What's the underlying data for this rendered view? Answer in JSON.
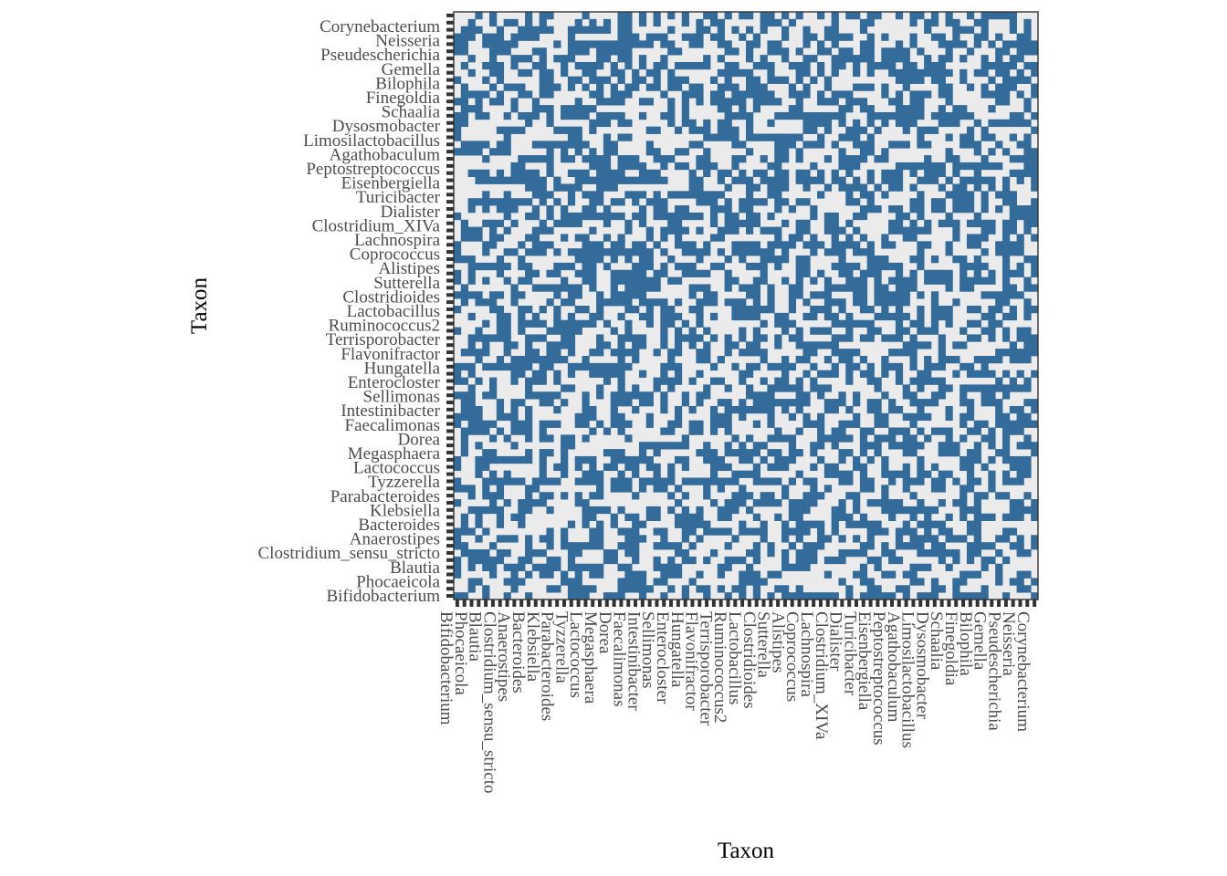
{
  "chart_data": {
    "type": "heatmap",
    "xlabel": "Taxon",
    "ylabel": "Taxon",
    "grid": true,
    "legend": "none",
    "colors": {
      "present": "#336b9a",
      "absent": "#ebebeb",
      "panel_border": "#333333",
      "tick": "#333333"
    },
    "y_categories_top_to_bottom": [
      "Corynebacterium",
      "Neisseria",
      "Pseudescherichia",
      "Gemella",
      "Bilophila",
      "Finegoldia",
      "Schaalia",
      "Dysosmobacter",
      "Limosilactobacillus",
      "Agathobaculum",
      "Peptostreptococcus",
      "Eisenbergiella",
      "Turicibacter",
      "Dialister",
      "Clostridium_XIVa",
      "Lachnospira",
      "Coprococcus",
      "Alistipes",
      "Sutterella",
      "Clostridioides",
      "Lactobacillus",
      "Ruminococcus2",
      "Terrisporobacter",
      "Flavonifractor",
      "Hungatella",
      "Enterocloster",
      "Sellimonas",
      "Intestinibacter",
      "Faecalimonas",
      "Dorea",
      "Megasphaera",
      "Lactococcus",
      "Tyzzerella",
      "Parabacteroides",
      "Klebsiella",
      "Bacteroides",
      "Anaerostipes",
      "Clostridium_sensu_stricto",
      "Blautia",
      "Phocaeicola",
      "Bifidobacterium"
    ],
    "x_categories_left_to_right": [
      "Bifidobacterium",
      "Phocaeicola",
      "Blautia",
      "Clostridium_sensu_stricto",
      "Anaerostipes",
      "Bacteroides",
      "Klebsiella",
      "Parabacteroides",
      "Tyzzerella",
      "Lactococcus",
      "Megasphaera",
      "Dorea",
      "Faecalimonas",
      "Intestinibacter",
      "Sellimonas",
      "Enterocloster",
      "Hungatella",
      "Flavonifractor",
      "Terrisporobacter",
      "Ruminococcus2",
      "Lactobacillus",
      "Clostridioides",
      "Sutterella",
      "Alistipes",
      "Coprococcus",
      "Lachnospira",
      "Clostridium_XIVa",
      "Dialister",
      "Turicibacter",
      "Eisenbergiella",
      "Peptostreptococcus",
      "Agathobaculum",
      "Limosilactobacillus",
      "Dysosmobacter",
      "Schaalia",
      "Finegoldia",
      "Bilophila",
      "Gemella",
      "Pseudescherichia",
      "Neisseria",
      "Corynebacterium"
    ],
    "tiles": {
      "encoding": "binary present/absent",
      "grid_columns": 82,
      "grid_rows": 82,
      "fill_fraction_estimate": 0.5,
      "seed": 20240607
    }
  }
}
